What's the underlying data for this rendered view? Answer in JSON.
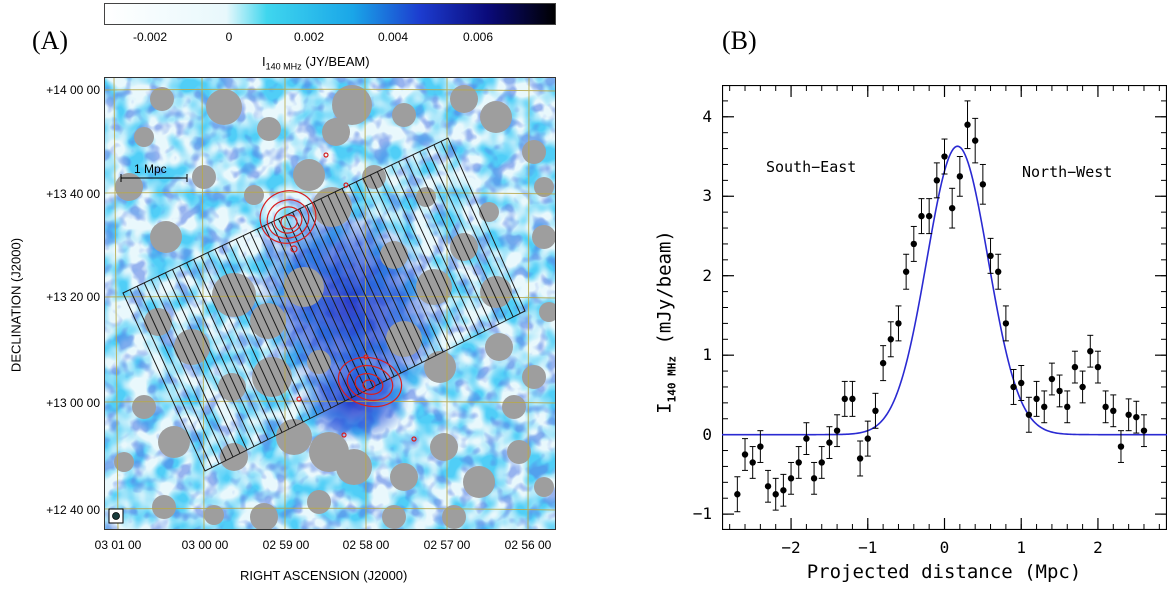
{
  "panel_a": {
    "label": "(A)",
    "colorbar": {
      "ticks": [
        "-0.002",
        "0",
        "0.002",
        "0.004",
        "0.006"
      ],
      "title_main": "I",
      "title_sub": "140 MHz",
      "title_unit": "(JY/BEAM)",
      "colors": [
        "#ffffff",
        "#e8f8fc",
        "#3fd6ee",
        "#1aa6e8",
        "#1c3ccf",
        "#0a0a7a",
        "#000000"
      ]
    },
    "scale_bar_label": "1 Mpc",
    "ra_ticks": [
      "03 01 00",
      "03 00 00",
      "02 59 00",
      "02 58 00",
      "02 57 00",
      "02 56 00"
    ],
    "dec_ticks": [
      "+14 00 00",
      "+13 40 00",
      "+13 20 00",
      "+13 00 00",
      "+12 40 00"
    ],
    "xlabel": "RIGHT ASCENSION (J2000)",
    "ylabel": "DECLINATION (J2000)",
    "colors": {
      "mask": "#9e9e9e",
      "contour": "#d81f1f",
      "grid": "#b8a84a",
      "strips": "#1a1a1a"
    }
  },
  "panel_b": {
    "label": "(B)",
    "annotations": {
      "left": "South−East",
      "right": "North−West"
    }
  },
  "chart_data": {
    "type": "scatter",
    "title": "",
    "xlabel": "Projected distance (Mpc)",
    "ylabel": "I",
    "ylabel_sub": "140 MHz",
    "ylabel_unit": "(mJy/beam)",
    "xlim": [
      -2.9,
      2.9
    ],
    "ylim": [
      -1.2,
      4.4
    ],
    "xticks": [
      -2,
      -1,
      0,
      1,
      2
    ],
    "yticks": [
      -1,
      0,
      1,
      2,
      3,
      4
    ],
    "series": [
      {
        "points": [
          {
            "x": -2.7,
            "y": -0.75,
            "err": 0.22
          },
          {
            "x": -2.6,
            "y": -0.25,
            "err": 0.2
          },
          {
            "x": -2.5,
            "y": -0.35,
            "err": 0.2
          },
          {
            "x": -2.4,
            "y": -0.15,
            "err": 0.2
          },
          {
            "x": -2.3,
            "y": -0.65,
            "err": 0.2
          },
          {
            "x": -2.2,
            "y": -0.75,
            "err": 0.2
          },
          {
            "x": -2.1,
            "y": -0.7,
            "err": 0.2
          },
          {
            "x": -2.0,
            "y": -0.55,
            "err": 0.2
          },
          {
            "x": -1.9,
            "y": -0.35,
            "err": 0.2
          },
          {
            "x": -1.8,
            "y": -0.05,
            "err": 0.2
          },
          {
            "x": -1.7,
            "y": -0.55,
            "err": 0.2
          },
          {
            "x": -1.6,
            "y": -0.35,
            "err": 0.2
          },
          {
            "x": -1.5,
            "y": -0.1,
            "err": 0.2
          },
          {
            "x": -1.4,
            "y": 0.05,
            "err": 0.2
          },
          {
            "x": -1.3,
            "y": 0.45,
            "err": 0.22
          },
          {
            "x": -1.2,
            "y": 0.45,
            "err": 0.22
          },
          {
            "x": -1.1,
            "y": -0.3,
            "err": 0.22
          },
          {
            "x": -1.0,
            "y": -0.05,
            "err": 0.22
          },
          {
            "x": -0.9,
            "y": 0.3,
            "err": 0.22
          },
          {
            "x": -0.8,
            "y": 0.9,
            "err": 0.22
          },
          {
            "x": -0.7,
            "y": 1.2,
            "err": 0.22
          },
          {
            "x": -0.6,
            "y": 1.4,
            "err": 0.22
          },
          {
            "x": -0.5,
            "y": 2.05,
            "err": 0.22
          },
          {
            "x": -0.4,
            "y": 2.4,
            "err": 0.22
          },
          {
            "x": -0.3,
            "y": 2.75,
            "err": 0.22
          },
          {
            "x": -0.2,
            "y": 2.75,
            "err": 0.22
          },
          {
            "x": -0.1,
            "y": 3.2,
            "err": 0.22
          },
          {
            "x": 0.0,
            "y": 3.5,
            "err": 0.22
          },
          {
            "x": 0.1,
            "y": 2.85,
            "err": 0.25
          },
          {
            "x": 0.2,
            "y": 3.25,
            "err": 0.25
          },
          {
            "x": 0.3,
            "y": 3.9,
            "err": 0.3
          },
          {
            "x": 0.4,
            "y": 3.7,
            "err": 0.28
          },
          {
            "x": 0.5,
            "y": 3.15,
            "err": 0.25
          },
          {
            "x": 0.6,
            "y": 2.25,
            "err": 0.22
          },
          {
            "x": 0.7,
            "y": 2.05,
            "err": 0.22
          },
          {
            "x": 0.8,
            "y": 1.4,
            "err": 0.22
          },
          {
            "x": 0.9,
            "y": 0.6,
            "err": 0.22
          },
          {
            "x": 1.0,
            "y": 0.65,
            "err": 0.22
          },
          {
            "x": 1.1,
            "y": 0.25,
            "err": 0.22
          },
          {
            "x": 1.2,
            "y": 0.45,
            "err": 0.22
          },
          {
            "x": 1.3,
            "y": 0.35,
            "err": 0.2
          },
          {
            "x": 1.4,
            "y": 0.7,
            "err": 0.2
          },
          {
            "x": 1.5,
            "y": 0.55,
            "err": 0.2
          },
          {
            "x": 1.6,
            "y": 0.35,
            "err": 0.2
          },
          {
            "x": 1.7,
            "y": 0.85,
            "err": 0.2
          },
          {
            "x": 1.8,
            "y": 0.6,
            "err": 0.2
          },
          {
            "x": 1.9,
            "y": 1.05,
            "err": 0.2
          },
          {
            "x": 2.0,
            "y": 0.85,
            "err": 0.2
          },
          {
            "x": 2.1,
            "y": 0.35,
            "err": 0.2
          },
          {
            "x": 2.2,
            "y": 0.3,
            "err": 0.2
          },
          {
            "x": 2.3,
            "y": -0.15,
            "err": 0.2
          },
          {
            "x": 2.4,
            "y": 0.25,
            "err": 0.2
          },
          {
            "x": 2.5,
            "y": 0.22,
            "err": 0.2
          },
          {
            "x": 2.6,
            "y": 0.05,
            "err": 0.2
          }
        ]
      }
    ],
    "fit": {
      "type": "gaussian",
      "amplitude": 3.63,
      "mean": 0.17,
      "sigma": 0.4,
      "color": "#2a2ad2"
    }
  }
}
